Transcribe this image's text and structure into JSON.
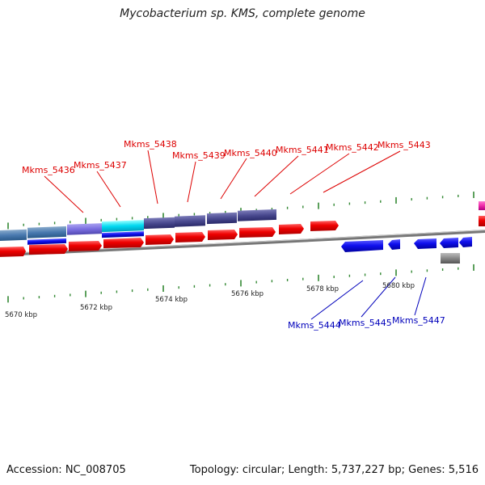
{
  "title": "Mycobacterium sp. KMS, complete genome",
  "footer": {
    "accession": "Accession: NC_008705",
    "summary": "Topology: circular; Length: 5,737,227 bp; Genes: 5,516"
  },
  "colors": {
    "forward_cds": "#ff0000",
    "reverse_cds": "#0000ee",
    "gene_label_top": "#dd0000",
    "gene_label_bottom": "#0000bb",
    "tick": "#338833",
    "backbone": "#888888"
  },
  "kbp_labels": [
    "5670 kbp",
    "5672 kbp",
    "5674 kbp",
    "5676 kbp",
    "5678 kbp",
    "5680 kbp"
  ],
  "top_gene_labels": [
    "Mkms_5436",
    "Mkms_5437",
    "Mkms_5438",
    "Mkms_5439",
    "Mkms_5440",
    "Mkms_5441",
    "Mkms_5442",
    "Mkms_5443"
  ],
  "bottom_gene_labels": [
    "Mkms_5444",
    "Mkms_5445",
    "Mkms_5447"
  ]
}
